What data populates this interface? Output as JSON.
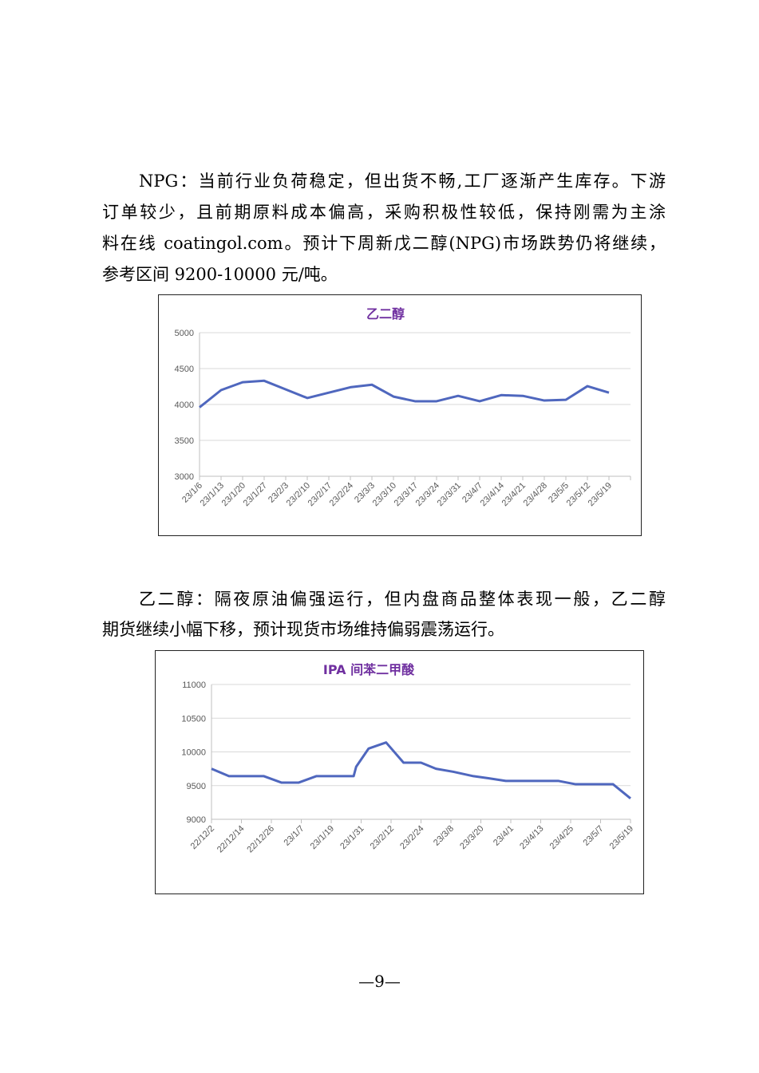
{
  "paragraphs": [
    {
      "lines": [
        "NPG：当前行业负荷稳定，但出货不畅,工厂逐渐产生库存。下游",
        "订单较少，且前期原料成本偏高，采购积极性较低，保持刚需为主涂",
        "料在线 coatingol.com。预计下周新戊二醇(NPG)市场跌势仍将继续，",
        "参考区间 9200-10000 元/吨。"
      ]
    },
    {
      "lines": [
        "乙二醇：隔夜原油偏强运行，但内盘商品整体表现一般，乙二醇",
        "期货继续小幅下移，预计现货市场维持偏弱震荡运行。"
      ]
    }
  ],
  "page_number": "—9—",
  "colors": {
    "line": "#4F67BE",
    "title": "#7030A0",
    "grid": "#D9D9D9"
  },
  "chart_data": [
    {
      "type": "line",
      "title": "乙二醇",
      "xlabel": "",
      "ylabel": "",
      "ylim": [
        3000,
        5000
      ],
      "yticks": [
        "5000",
        "4500",
        "4000",
        "3500",
        "3000"
      ],
      "grid": true,
      "categories": [
        "23/1/6",
        "23/1/13",
        "23/1/20",
        "23/1/27",
        "23/2/3",
        "23/2/10",
        "23/2/17",
        "23/2/24",
        "23/3/3",
        "23/3/10",
        "23/3/17",
        "23/3/24",
        "23/3/31",
        "23/4/7",
        "23/4/14",
        "23/4/21",
        "23/4/28",
        "23/5/5",
        "23/5/12",
        "23/5/19"
      ],
      "values": [
        3960,
        4200,
        4310,
        4330,
        4210,
        4090,
        4165,
        4240,
        4275,
        4110,
        4045,
        4045,
        4120,
        4045,
        4130,
        4120,
        4055,
        4065,
        4255,
        4165
      ]
    },
    {
      "type": "line",
      "title": "IPA 间苯二甲酸",
      "xlabel": "",
      "ylabel": "",
      "ylim": [
        9000,
        11000
      ],
      "yticks": [
        "11000",
        "10500",
        "10000",
        "9500",
        "9000"
      ],
      "grid": true,
      "xticks": [
        "22/12/2",
        "22/12/14",
        "22/12/26",
        "23/1/7",
        "23/1/19",
        "23/1/31",
        "23/2/12",
        "23/2/24",
        "23/3/8",
        "23/3/20",
        "23/4/1",
        "23/4/13",
        "23/4/25",
        "23/5/7",
        "23/5/19"
      ],
      "xlim": [
        "2022-12-02",
        "2023-05-19"
      ],
      "points": [
        {
          "x": "2022-12-02",
          "y": 9750
        },
        {
          "x": "2022-12-09",
          "y": 9640
        },
        {
          "x": "2022-12-23",
          "y": 9640
        },
        {
          "x": "2022-12-30",
          "y": 9545
        },
        {
          "x": "2023-01-06",
          "y": 9545
        },
        {
          "x": "2023-01-13",
          "y": 9640
        },
        {
          "x": "2023-01-28",
          "y": 9640
        },
        {
          "x": "2023-01-29",
          "y": 9780
        },
        {
          "x": "2023-02-03",
          "y": 10050
        },
        {
          "x": "2023-02-10",
          "y": 10140
        },
        {
          "x": "2023-02-17",
          "y": 9840
        },
        {
          "x": "2023-02-24",
          "y": 9840
        },
        {
          "x": "2023-03-02",
          "y": 9750
        },
        {
          "x": "2023-03-09",
          "y": 9705
        },
        {
          "x": "2023-03-17",
          "y": 9640
        },
        {
          "x": "2023-03-23",
          "y": 9610
        },
        {
          "x": "2023-03-30",
          "y": 9570
        },
        {
          "x": "2023-04-20",
          "y": 9570
        },
        {
          "x": "2023-04-27",
          "y": 9520
        },
        {
          "x": "2023-05-12",
          "y": 9520
        },
        {
          "x": "2023-05-19",
          "y": 9310
        }
      ]
    }
  ]
}
